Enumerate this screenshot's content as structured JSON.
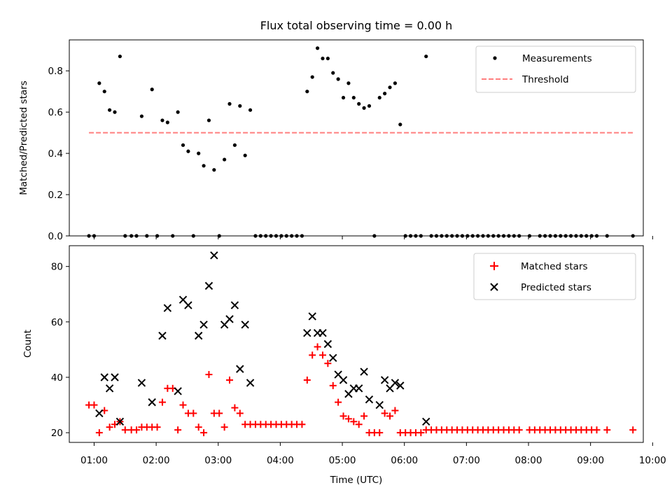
{
  "chart_data": [
    {
      "type": "scatter",
      "title": "Flux total observing time = 0.00 h",
      "xlabel": "",
      "ylabel": "Matched/Predicted stars",
      "xlim": [
        "00:36",
        "09:51"
      ],
      "ylim": [
        0,
        0.95
      ],
      "yticks": [
        0.0,
        0.2,
        0.4,
        0.6,
        0.8
      ],
      "ytick_labels": [
        "0.0",
        "0.2",
        "0.4",
        "0.6",
        "0.8"
      ],
      "legend_position": "top-right",
      "series": [
        {
          "name": "Measurements",
          "kind": "points",
          "color": "#000000",
          "points": [
            [
              "00:55",
              0
            ],
            [
              "01:00",
              0
            ],
            [
              "01:05",
              0.74
            ],
            [
              "01:10",
              0.7
            ],
            [
              "01:15",
              0.61
            ],
            [
              "01:20",
              0.6
            ],
            [
              "01:25",
              0.87
            ],
            [
              "01:30",
              0
            ],
            [
              "01:36",
              0
            ],
            [
              "01:41",
              0
            ],
            [
              "01:46",
              0.58
            ],
            [
              "01:51",
              0
            ],
            [
              "01:56",
              0.71
            ],
            [
              "02:01",
              0
            ],
            [
              "02:06",
              0.56
            ],
            [
              "02:11",
              0.55
            ],
            [
              "02:16",
              0
            ],
            [
              "02:21",
              0.6
            ],
            [
              "02:26",
              0.44
            ],
            [
              "02:31",
              0.41
            ],
            [
              "02:36",
              0
            ],
            [
              "02:41",
              0.4
            ],
            [
              "02:46",
              0.34
            ],
            [
              "02:51",
              0.56
            ],
            [
              "02:56",
              0.32
            ],
            [
              "03:01",
              0
            ],
            [
              "03:06",
              0.37
            ],
            [
              "03:11",
              0.64
            ],
            [
              "03:16",
              0.44
            ],
            [
              "03:21",
              0.63
            ],
            [
              "03:26",
              0.39
            ],
            [
              "03:31",
              0.61
            ],
            [
              "03:36",
              0
            ],
            [
              "03:41",
              0
            ],
            [
              "03:46",
              0
            ],
            [
              "03:51",
              0
            ],
            [
              "03:56",
              0
            ],
            [
              "04:01",
              0
            ],
            [
              "04:06",
              0
            ],
            [
              "04:11",
              0
            ],
            [
              "04:16",
              0
            ],
            [
              "04:21",
              0
            ],
            [
              "04:26",
              0.7
            ],
            [
              "04:31",
              0.77
            ],
            [
              "04:36",
              0.91
            ],
            [
              "04:41",
              0.86
            ],
            [
              "04:46",
              0.86
            ],
            [
              "04:51",
              0.79
            ],
            [
              "04:56",
              0.76
            ],
            [
              "05:01",
              0.67
            ],
            [
              "05:06",
              0.74
            ],
            [
              "05:11",
              0.67
            ],
            [
              "05:16",
              0.64
            ],
            [
              "05:21",
              0.62
            ],
            [
              "05:26",
              0.63
            ],
            [
              "05:31",
              0
            ],
            [
              "05:36",
              0.67
            ],
            [
              "05:41",
              0.69
            ],
            [
              "05:46",
              0.72
            ],
            [
              "05:51",
              0.74
            ],
            [
              "05:56",
              0.54
            ],
            [
              "06:01",
              0
            ],
            [
              "06:06",
              0
            ],
            [
              "06:11",
              0
            ],
            [
              "06:16",
              0
            ],
            [
              "06:21",
              0.87
            ],
            [
              "06:26",
              0
            ],
            [
              "06:31",
              0
            ],
            [
              "06:36",
              0
            ],
            [
              "06:41",
              0
            ],
            [
              "06:46",
              0
            ],
            [
              "06:51",
              0
            ],
            [
              "06:56",
              0
            ],
            [
              "07:01",
              0
            ],
            [
              "07:06",
              0
            ],
            [
              "07:11",
              0
            ],
            [
              "07:16",
              0
            ],
            [
              "07:21",
              0
            ],
            [
              "07:26",
              0
            ],
            [
              "07:31",
              0
            ],
            [
              "07:36",
              0
            ],
            [
              "07:41",
              0
            ],
            [
              "07:46",
              0
            ],
            [
              "07:51",
              0
            ],
            [
              "08:01",
              0
            ],
            [
              "08:11",
              0
            ],
            [
              "08:16",
              0
            ],
            [
              "08:21",
              0
            ],
            [
              "08:26",
              0
            ],
            [
              "08:31",
              0
            ],
            [
              "08:36",
              0
            ],
            [
              "08:41",
              0
            ],
            [
              "08:46",
              0
            ],
            [
              "08:51",
              0
            ],
            [
              "08:56",
              0
            ],
            [
              "09:01",
              0
            ],
            [
              "09:06",
              0
            ],
            [
              "09:16",
              0
            ],
            [
              "09:41",
              0
            ]
          ]
        },
        {
          "name": "Threshold",
          "kind": "dashed-line",
          "color": "#ff7f7f",
          "points": [
            [
              "00:55",
              0.5
            ],
            [
              "09:41",
              0.5
            ]
          ]
        }
      ]
    },
    {
      "type": "scatter",
      "title": "",
      "xlabel": "Time (UTC)",
      "ylabel": "Count",
      "xlim": [
        "00:36",
        "09:51"
      ],
      "ylim": [
        16.5,
        87.5
      ],
      "yticks": [
        20,
        40,
        60,
        80
      ],
      "ytick_labels": [
        "20",
        "40",
        "60",
        "80"
      ],
      "xticks": [
        "01:00",
        "02:00",
        "03:00",
        "04:00",
        "05:00",
        "06:00",
        "07:00",
        "08:00",
        "09:00",
        "10:00"
      ],
      "legend_position": "top-right",
      "series": [
        {
          "name": "Matched stars",
          "marker": "plus",
          "color": "#ff0000",
          "points": [
            [
              "00:55",
              30
            ],
            [
              "01:00",
              30
            ],
            [
              "01:05",
              20
            ],
            [
              "01:10",
              28
            ],
            [
              "01:15",
              22
            ],
            [
              "01:20",
              23
            ],
            [
              "01:25",
              24
            ],
            [
              "01:30",
              21
            ],
            [
              "01:36",
              21
            ],
            [
              "01:41",
              21
            ],
            [
              "01:46",
              22
            ],
            [
              "01:51",
              22
            ],
            [
              "01:56",
              22
            ],
            [
              "02:01",
              22
            ],
            [
              "02:06",
              31
            ],
            [
              "02:11",
              36
            ],
            [
              "02:16",
              36
            ],
            [
              "02:21",
              21
            ],
            [
              "02:26",
              30
            ],
            [
              "02:31",
              27
            ],
            [
              "02:36",
              27
            ],
            [
              "02:41",
              22
            ],
            [
              "02:46",
              20
            ],
            [
              "02:51",
              41
            ],
            [
              "02:56",
              27
            ],
            [
              "03:01",
              27
            ],
            [
              "03:06",
              22
            ],
            [
              "03:11",
              39
            ],
            [
              "03:16",
              29
            ],
            [
              "03:21",
              27
            ],
            [
              "03:26",
              23
            ],
            [
              "03:31",
              23
            ],
            [
              "03:36",
              23
            ],
            [
              "03:41",
              23
            ],
            [
              "03:46",
              23
            ],
            [
              "03:51",
              23
            ],
            [
              "03:56",
              23
            ],
            [
              "04:01",
              23
            ],
            [
              "04:06",
              23
            ],
            [
              "04:11",
              23
            ],
            [
              "04:16",
              23
            ],
            [
              "04:21",
              23
            ],
            [
              "04:26",
              39
            ],
            [
              "04:31",
              48
            ],
            [
              "04:36",
              51
            ],
            [
              "04:41",
              48
            ],
            [
              "04:46",
              45
            ],
            [
              "04:51",
              37
            ],
            [
              "04:56",
              31
            ],
            [
              "05:01",
              26
            ],
            [
              "05:06",
              25
            ],
            [
              "05:11",
              24
            ],
            [
              "05:16",
              23
            ],
            [
              "05:21",
              26
            ],
            [
              "05:26",
              20
            ],
            [
              "05:31",
              20
            ],
            [
              "05:36",
              20
            ],
            [
              "05:41",
              27
            ],
            [
              "05:46",
              26
            ],
            [
              "05:51",
              28
            ],
            [
              "05:56",
              20
            ],
            [
              "06:01",
              20
            ],
            [
              "06:06",
              20
            ],
            [
              "06:11",
              20
            ],
            [
              "06:16",
              20
            ],
            [
              "06:21",
              21
            ],
            [
              "06:26",
              21
            ],
            [
              "06:31",
              21
            ],
            [
              "06:36",
              21
            ],
            [
              "06:41",
              21
            ],
            [
              "06:46",
              21
            ],
            [
              "06:51",
              21
            ],
            [
              "06:56",
              21
            ],
            [
              "07:01",
              21
            ],
            [
              "07:06",
              21
            ],
            [
              "07:11",
              21
            ],
            [
              "07:16",
              21
            ],
            [
              "07:21",
              21
            ],
            [
              "07:26",
              21
            ],
            [
              "07:31",
              21
            ],
            [
              "07:36",
              21
            ],
            [
              "07:41",
              21
            ],
            [
              "07:46",
              21
            ],
            [
              "07:51",
              21
            ],
            [
              "08:01",
              21
            ],
            [
              "08:06",
              21
            ],
            [
              "08:11",
              21
            ],
            [
              "08:16",
              21
            ],
            [
              "08:21",
              21
            ],
            [
              "08:26",
              21
            ],
            [
              "08:31",
              21
            ],
            [
              "08:36",
              21
            ],
            [
              "08:41",
              21
            ],
            [
              "08:46",
              21
            ],
            [
              "08:51",
              21
            ],
            [
              "08:56",
              21
            ],
            [
              "09:01",
              21
            ],
            [
              "09:06",
              21
            ],
            [
              "09:16",
              21
            ],
            [
              "09:41",
              21
            ]
          ]
        },
        {
          "name": "Predicted stars",
          "marker": "x",
          "color": "#000000",
          "points": [
            [
              "01:05",
              27
            ],
            [
              "01:10",
              40
            ],
            [
              "01:15",
              36
            ],
            [
              "01:20",
              40
            ],
            [
              "01:25",
              24
            ],
            [
              "01:46",
              38
            ],
            [
              "01:56",
              31
            ],
            [
              "02:06",
              55
            ],
            [
              "02:11",
              65
            ],
            [
              "02:21",
              35
            ],
            [
              "02:26",
              68
            ],
            [
              "02:31",
              66
            ],
            [
              "02:41",
              55
            ],
            [
              "02:46",
              59
            ],
            [
              "02:51",
              73
            ],
            [
              "02:56",
              84
            ],
            [
              "03:06",
              59
            ],
            [
              "03:11",
              61
            ],
            [
              "03:16",
              66
            ],
            [
              "03:21",
              43
            ],
            [
              "03:26",
              59
            ],
            [
              "03:31",
              38
            ],
            [
              "04:26",
              56
            ],
            [
              "04:31",
              62
            ],
            [
              "04:36",
              56
            ],
            [
              "04:41",
              56
            ],
            [
              "04:46",
              52
            ],
            [
              "04:51",
              47
            ],
            [
              "04:56",
              41
            ],
            [
              "05:01",
              39
            ],
            [
              "05:06",
              34
            ],
            [
              "05:11",
              36
            ],
            [
              "05:16",
              36
            ],
            [
              "05:21",
              42
            ],
            [
              "05:26",
              32
            ],
            [
              "05:36",
              30
            ],
            [
              "05:41",
              39
            ],
            [
              "05:46",
              36
            ],
            [
              "05:51",
              38
            ],
            [
              "05:56",
              37
            ],
            [
              "06:21",
              24
            ]
          ]
        }
      ]
    }
  ]
}
